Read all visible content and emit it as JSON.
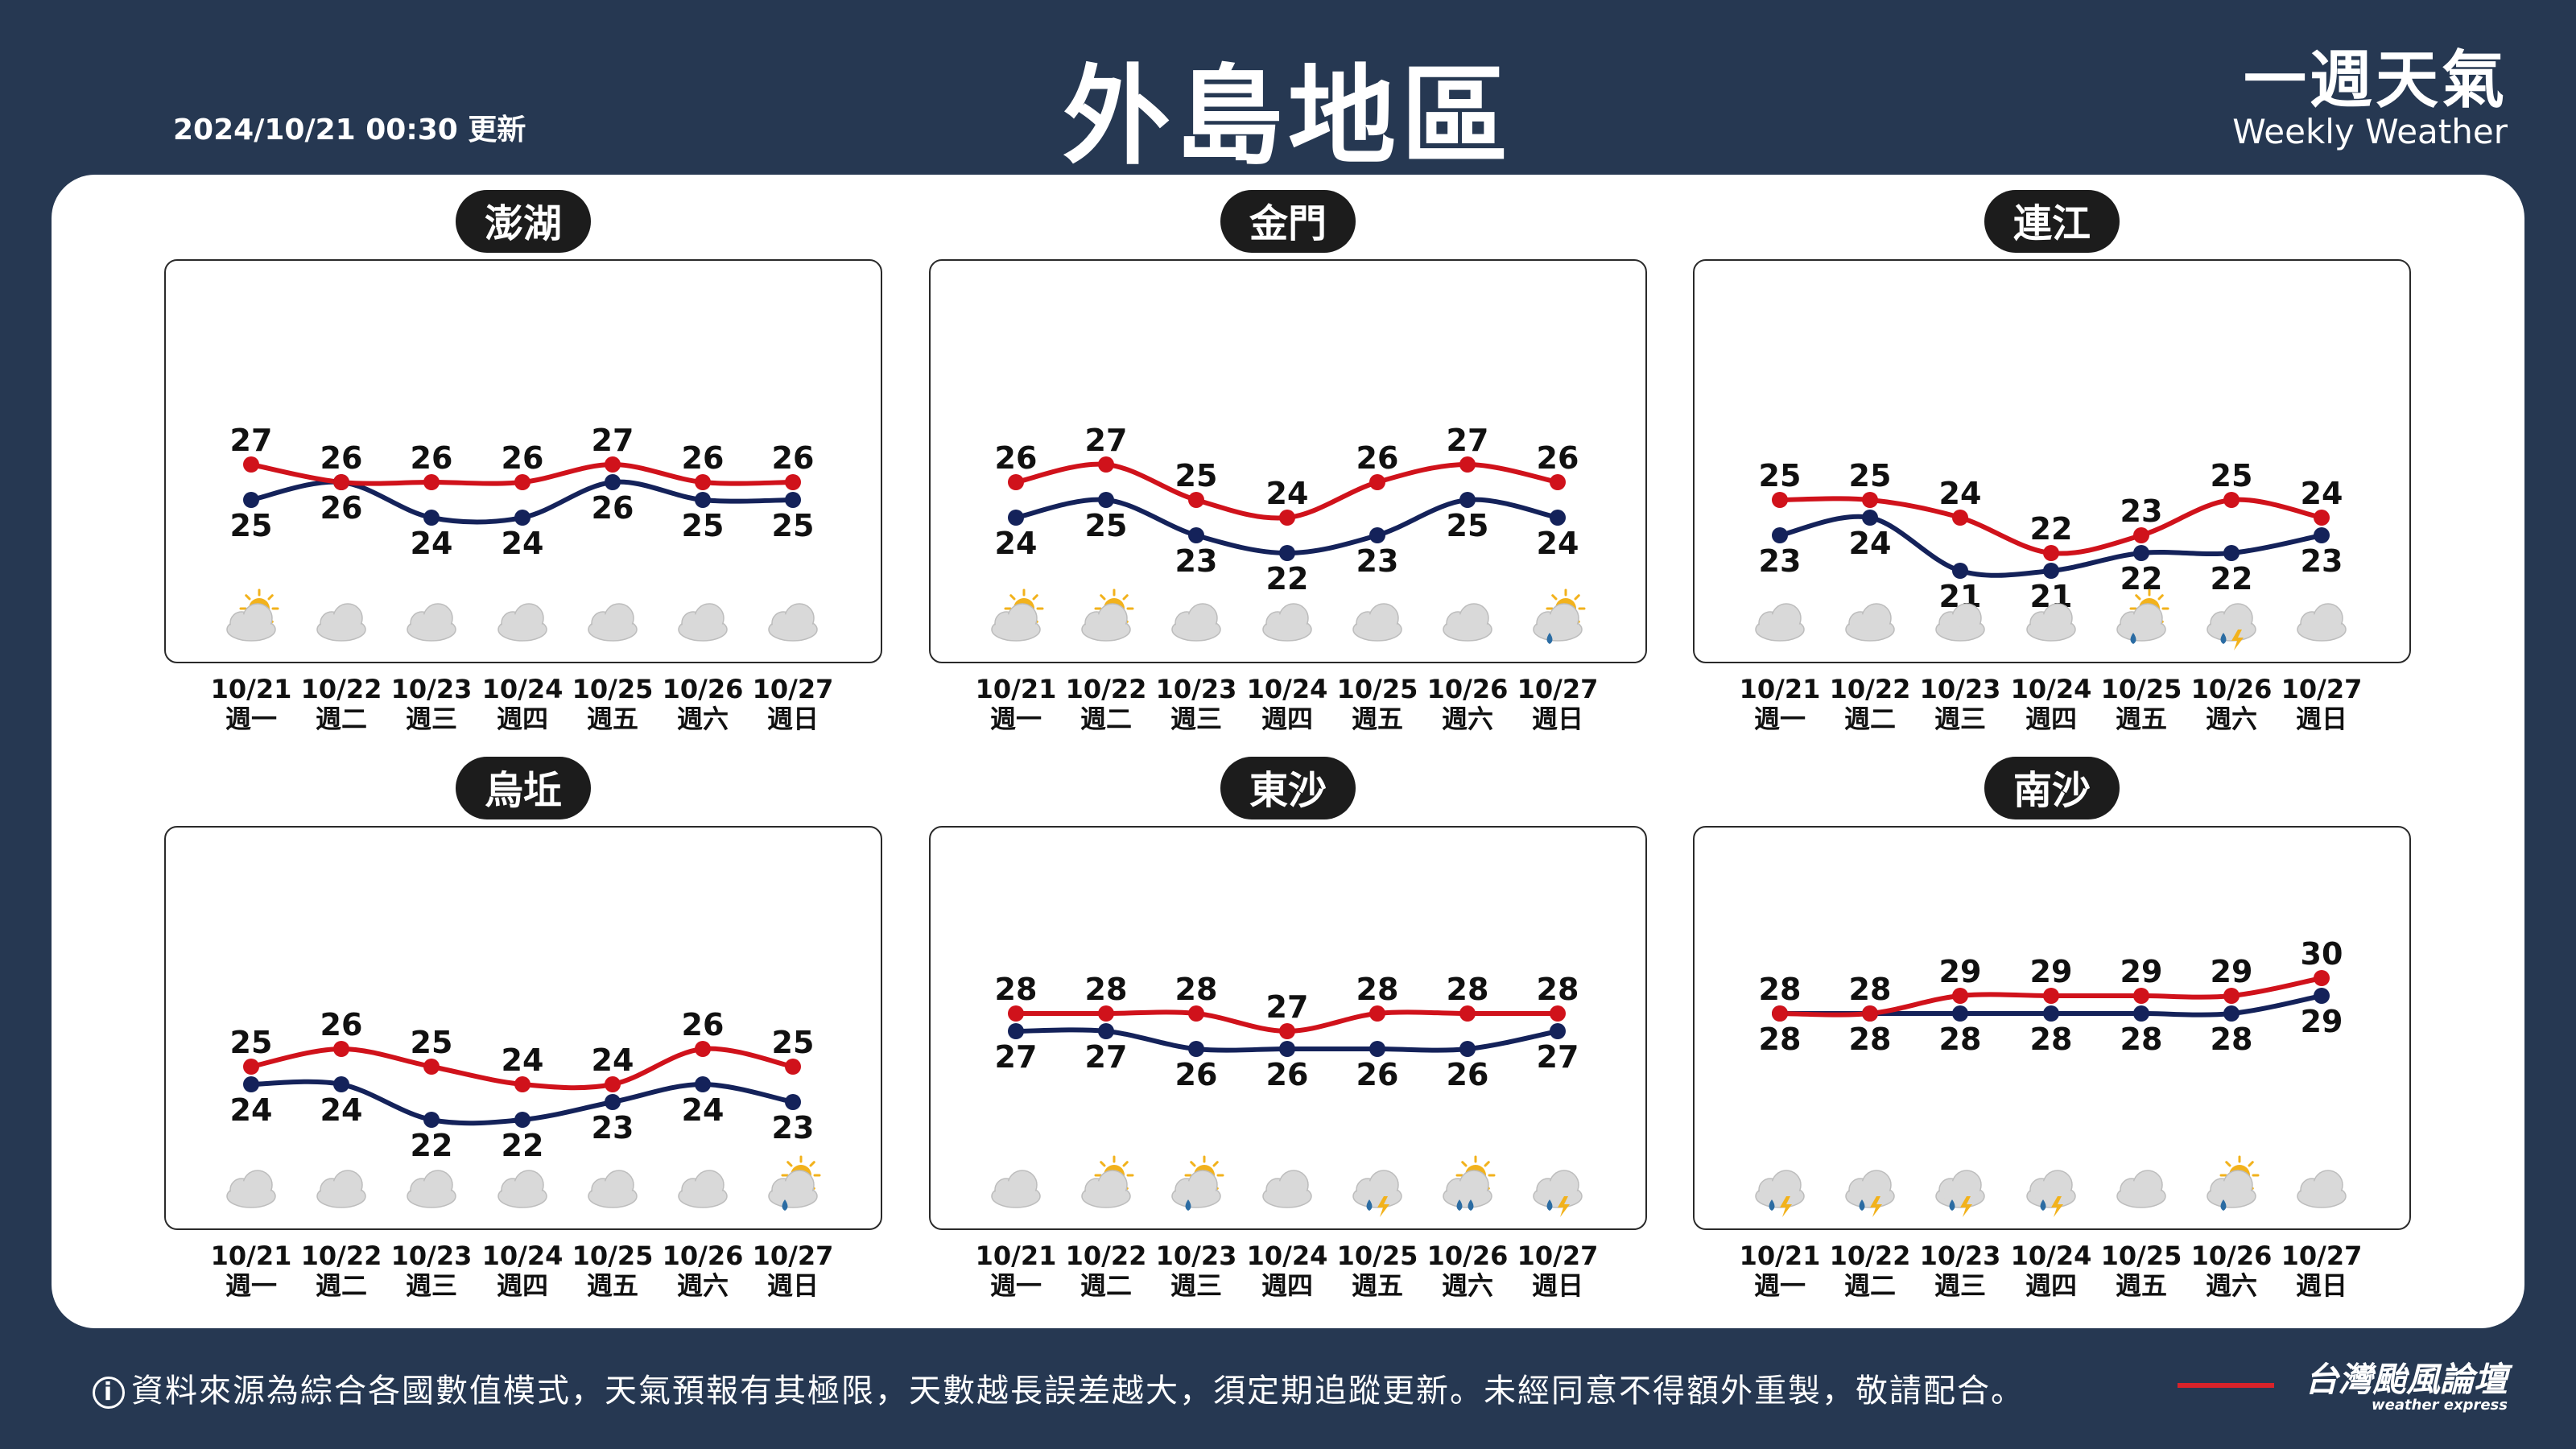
{
  "header": {
    "update_time": "2024/10/21 00:30 更新",
    "title": "外島地區",
    "brand_zh": "一週天氣",
    "brand_en": "Weekly Weather"
  },
  "footer": {
    "info_icon": "info-icon",
    "disclaimer": "資料來源為綜合各國數值模式，天氣預報有其極限，天數越長誤差越大，須定期追蹤更新。未經同意不得額外重製，敬請配合。",
    "logo_zh": "台灣颱風論壇",
    "logo_en": "weather express"
  },
  "colors": {
    "high": "#d0121b",
    "low": "#14225a",
    "sun": "#f2b21c",
    "cloud": "#d9d9d9",
    "rain": "#2b6ca3",
    "bolt": "#f2b21c"
  },
  "chart_data": [
    {
      "type": "line",
      "title": "澎湖",
      "x": [
        "10/21",
        "10/22",
        "10/23",
        "10/24",
        "10/25",
        "10/26",
        "10/27"
      ],
      "weekdays": [
        "週一",
        "週二",
        "週三",
        "週四",
        "週五",
        "週六",
        "週日"
      ],
      "series": [
        {
          "values": [
            27,
            26,
            26,
            26,
            27,
            26,
            26
          ]
        },
        {
          "values": [
            25,
            26,
            24,
            24,
            26,
            25,
            25
          ]
        }
      ],
      "weather": [
        "partly-sunny-icon",
        "cloudy-icon",
        "cloudy-icon",
        "cloudy-icon",
        "cloudy-icon",
        "cloudy-icon",
        "cloudy-icon"
      ]
    },
    {
      "type": "line",
      "title": "金門",
      "x": [
        "10/21",
        "10/22",
        "10/23",
        "10/24",
        "10/25",
        "10/26",
        "10/27"
      ],
      "weekdays": [
        "週一",
        "週二",
        "週三",
        "週四",
        "週五",
        "週六",
        "週日"
      ],
      "series": [
        {
          "values": [
            26,
            27,
            25,
            24,
            26,
            27,
            26
          ]
        },
        {
          "values": [
            24,
            25,
            23,
            22,
            23,
            25,
            24
          ]
        }
      ],
      "weather": [
        "partly-sunny-icon",
        "partly-sunny-icon",
        "cloudy-icon",
        "cloudy-icon",
        "cloudy-icon",
        "cloudy-icon",
        "sun-shower-icon"
      ]
    },
    {
      "type": "line",
      "title": "連江",
      "x": [
        "10/21",
        "10/22",
        "10/23",
        "10/24",
        "10/25",
        "10/26",
        "10/27"
      ],
      "weekdays": [
        "週一",
        "週二",
        "週三",
        "週四",
        "週五",
        "週六",
        "週日"
      ],
      "series": [
        {
          "values": [
            25,
            25,
            24,
            22,
            23,
            25,
            24
          ]
        },
        {
          "values": [
            23,
            24,
            21,
            21,
            22,
            22,
            23
          ]
        }
      ],
      "weather": [
        "cloudy-icon",
        "cloudy-icon",
        "cloudy-icon",
        "cloudy-icon",
        "sun-shower-icon",
        "thunderstorm-icon",
        "cloudy-icon"
      ]
    },
    {
      "type": "line",
      "title": "烏坵",
      "x": [
        "10/21",
        "10/22",
        "10/23",
        "10/24",
        "10/25",
        "10/26",
        "10/27"
      ],
      "weekdays": [
        "週一",
        "週二",
        "週三",
        "週四",
        "週五",
        "週六",
        "週日"
      ],
      "series": [
        {
          "values": [
            25,
            26,
            25,
            24,
            24,
            26,
            25
          ]
        },
        {
          "values": [
            24,
            24,
            22,
            22,
            23,
            24,
            23
          ]
        }
      ],
      "weather": [
        "cloudy-icon",
        "cloudy-icon",
        "cloudy-icon",
        "cloudy-icon",
        "cloudy-icon",
        "cloudy-icon",
        "sun-shower-icon"
      ]
    },
    {
      "type": "line",
      "title": "東沙",
      "x": [
        "10/21",
        "10/22",
        "10/23",
        "10/24",
        "10/25",
        "10/26",
        "10/27"
      ],
      "weekdays": [
        "週一",
        "週二",
        "週三",
        "週四",
        "週五",
        "週六",
        "週日"
      ],
      "series": [
        {
          "values": [
            28,
            28,
            28,
            27,
            28,
            28,
            28
          ]
        },
        {
          "values": [
            27,
            27,
            26,
            26,
            26,
            26,
            27
          ]
        }
      ],
      "weather": [
        "cloudy-icon",
        "partly-sunny-icon",
        "sun-shower-icon",
        "cloudy-icon",
        "thunderstorm-icon",
        "sun-rain-icon",
        "thunderstorm-icon"
      ]
    },
    {
      "type": "line",
      "title": "南沙",
      "x": [
        "10/21",
        "10/22",
        "10/23",
        "10/24",
        "10/25",
        "10/26",
        "10/27"
      ],
      "weekdays": [
        "週一",
        "週二",
        "週三",
        "週四",
        "週五",
        "週六",
        "週日"
      ],
      "series": [
        {
          "values": [
            28,
            28,
            29,
            29,
            29,
            29,
            30
          ]
        },
        {
          "values": [
            28,
            28,
            28,
            28,
            28,
            28,
            29
          ]
        }
      ],
      "weather": [
        "thunderstorm-icon",
        "thunderstorm-icon",
        "thunderstorm-icon",
        "thunderstorm-icon",
        "cloudy-icon",
        "sun-shower-icon",
        "cloudy-icon"
      ]
    }
  ]
}
